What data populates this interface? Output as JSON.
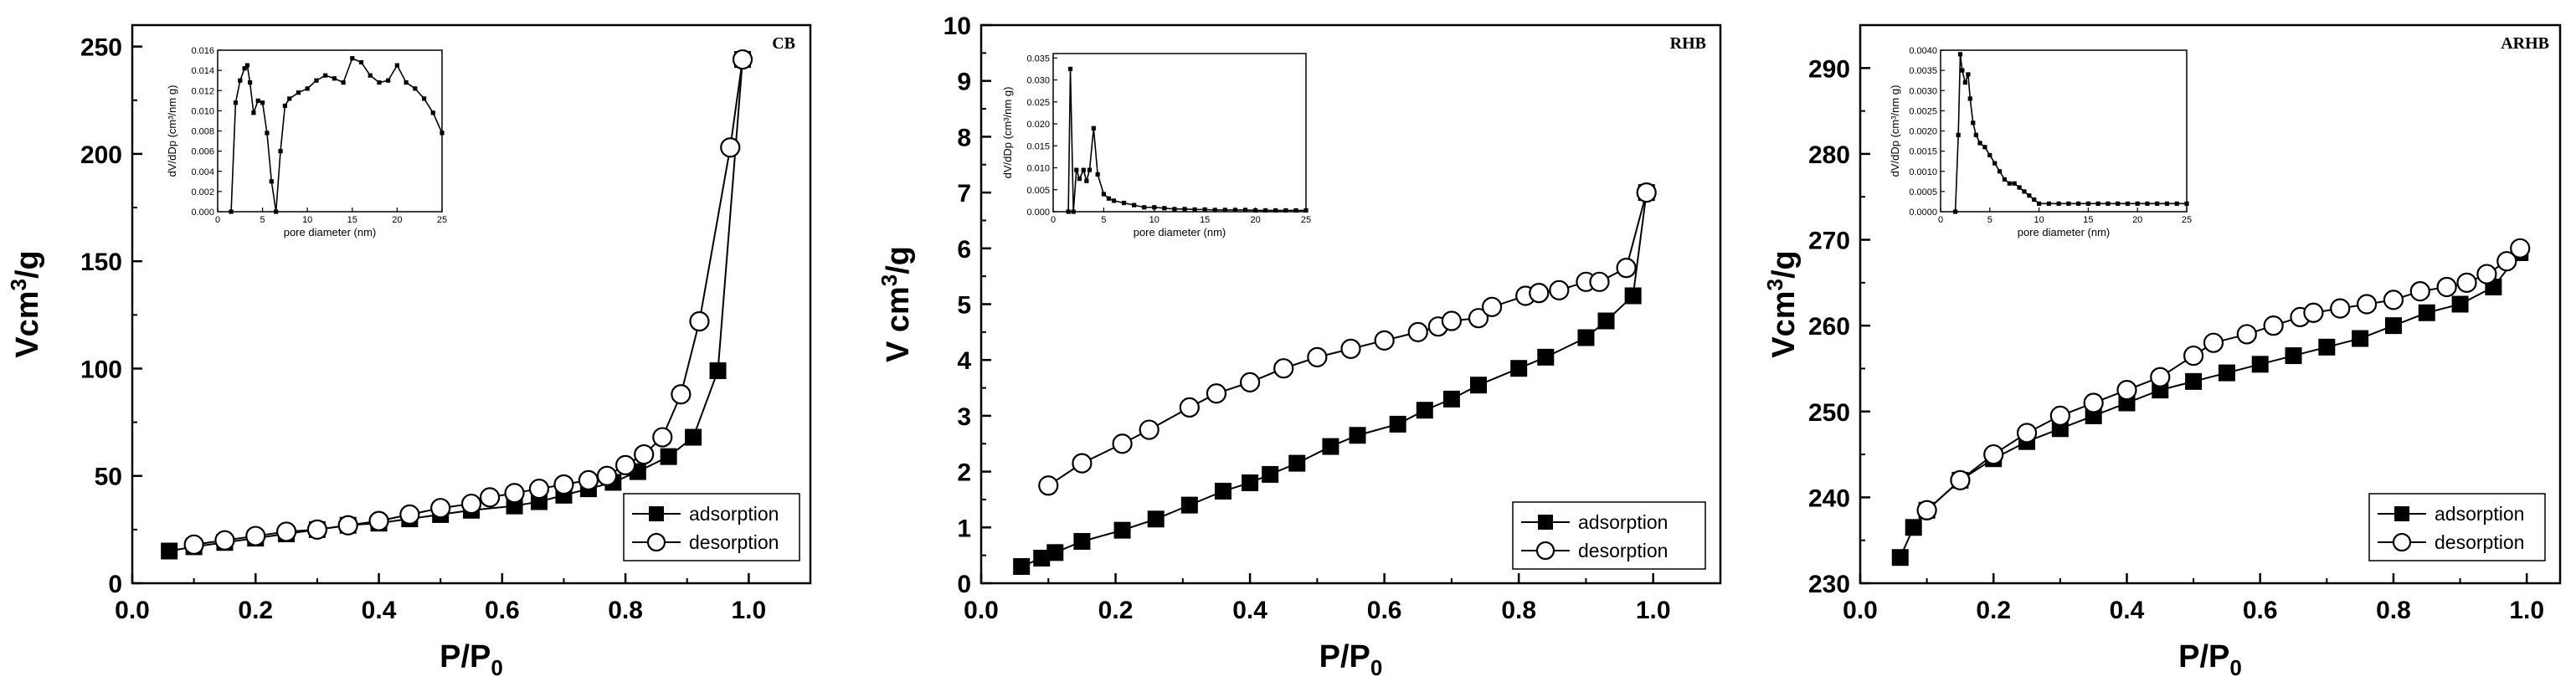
{
  "chart_data": [
    {
      "type": "line",
      "panel_label": "CB",
      "xlabel": "P/P",
      "xlabel_sub": "0",
      "ylabel": "Vcm",
      "ylabel_sup": "3",
      "ylabel_tail": "/g",
      "xlim": [
        0.0,
        1.1
      ],
      "ylim": [
        0,
        260
      ],
      "xticks": [
        0.0,
        0.2,
        0.4,
        0.6,
        0.8,
        1.0
      ],
      "yticks": [
        0,
        50,
        100,
        150,
        200,
        250
      ],
      "series": [
        {
          "name": "adsorption",
          "marker": "filled-square",
          "x": [
            0.06,
            0.1,
            0.15,
            0.2,
            0.25,
            0.3,
            0.35,
            0.4,
            0.45,
            0.5,
            0.55,
            0.62,
            0.66,
            0.7,
            0.74,
            0.78,
            0.82,
            0.87,
            0.91,
            0.95,
            0.99
          ],
          "y": [
            15,
            17,
            19,
            21,
            23,
            25,
            27,
            28,
            30,
            32,
            34,
            36,
            38,
            41,
            44,
            47,
            52,
            59,
            68,
            99,
            244
          ]
        },
        {
          "name": "desorption",
          "marker": "open-circle",
          "x": [
            0.1,
            0.15,
            0.2,
            0.25,
            0.3,
            0.35,
            0.4,
            0.45,
            0.5,
            0.55,
            0.58,
            0.62,
            0.66,
            0.7,
            0.74,
            0.77,
            0.8,
            0.83,
            0.86,
            0.89,
            0.92,
            0.97,
            0.99
          ],
          "y": [
            18,
            20,
            22,
            24,
            25,
            27,
            29,
            32,
            35,
            37,
            40,
            42,
            44,
            46,
            48,
            50,
            55,
            60,
            68,
            88,
            122,
            203,
            244
          ]
        }
      ],
      "legend": [
        "adsorption",
        "desorption"
      ],
      "inset": {
        "xlabel": "pore diameter (nm)",
        "ylabel": "dV/dDp (cm³/nm g)",
        "xlim": [
          0,
          25
        ],
        "ylim": [
          0,
          0.016
        ],
        "xticks": [
          0,
          5,
          10,
          15,
          20,
          25
        ],
        "yticks": [
          0.0,
          0.002,
          0.004,
          0.006,
          0.008,
          0.01,
          0.012,
          0.014,
          0.016
        ],
        "ytick_labels": [
          "0.000",
          "0.002",
          "0.004",
          "0.006",
          "0.008",
          "0.010",
          "0.012",
          "0.014",
          "0.016"
        ],
        "x": [
          1.5,
          2,
          2.5,
          3,
          3.3,
          3.6,
          4,
          4.5,
          5,
          5.5,
          6,
          6.5,
          7,
          7.5,
          8,
          9,
          10,
          11,
          12,
          13,
          14,
          15,
          16,
          17,
          18,
          19,
          20,
          21,
          22,
          23,
          24,
          25
        ],
        "y": [
          0.0,
          0.0108,
          0.013,
          0.0142,
          0.0145,
          0.0128,
          0.0098,
          0.011,
          0.0108,
          0.0078,
          0.003,
          0.0,
          0.006,
          0.0105,
          0.0112,
          0.0118,
          0.0122,
          0.013,
          0.0135,
          0.0132,
          0.0128,
          0.0152,
          0.0148,
          0.0135,
          0.0128,
          0.013,
          0.0145,
          0.0128,
          0.0122,
          0.0112,
          0.0098,
          0.0078
        ]
      }
    },
    {
      "type": "line",
      "panel_label": "RHB",
      "xlabel": "P/P",
      "xlabel_sub": "0",
      "ylabel": "V cm",
      "ylabel_sup": "3",
      "ylabel_tail": "/g",
      "xlim": [
        0.0,
        1.1
      ],
      "ylim": [
        0,
        10
      ],
      "xticks": [
        0.0,
        0.2,
        0.4,
        0.6,
        0.8,
        1.0
      ],
      "yticks": [
        0,
        1,
        2,
        3,
        4,
        5,
        6,
        7,
        8,
        9,
        10
      ],
      "series": [
        {
          "name": "adsorption",
          "marker": "filled-square",
          "x": [
            0.06,
            0.09,
            0.11,
            0.15,
            0.21,
            0.26,
            0.31,
            0.36,
            0.4,
            0.43,
            0.47,
            0.52,
            0.56,
            0.62,
            0.66,
            0.7,
            0.74,
            0.8,
            0.84,
            0.9,
            0.93,
            0.97,
            0.99
          ],
          "y": [
            0.3,
            0.45,
            0.55,
            0.75,
            0.95,
            1.15,
            1.4,
            1.65,
            1.8,
            1.95,
            2.15,
            2.45,
            2.65,
            2.85,
            3.1,
            3.3,
            3.55,
            3.85,
            4.05,
            4.4,
            4.7,
            5.15,
            7.0
          ]
        },
        {
          "name": "desorption",
          "marker": "open-circle",
          "x": [
            0.1,
            0.15,
            0.21,
            0.25,
            0.31,
            0.35,
            0.4,
            0.45,
            0.5,
            0.55,
            0.6,
            0.65,
            0.68,
            0.7,
            0.74,
            0.76,
            0.81,
            0.83,
            0.86,
            0.9,
            0.92,
            0.96,
            0.99
          ],
          "y": [
            1.75,
            2.15,
            2.5,
            2.75,
            3.15,
            3.4,
            3.6,
            3.85,
            4.05,
            4.2,
            4.35,
            4.5,
            4.6,
            4.7,
            4.75,
            4.95,
            5.15,
            5.2,
            5.25,
            5.4,
            5.4,
            5.65,
            7.0
          ]
        }
      ],
      "legend": [
        "adsorption",
        "desorption"
      ],
      "inset": {
        "xlabel": "pore diameter (nm)",
        "ylabel": "dV/dDp (cm³/nm g)",
        "xlim": [
          0,
          25
        ],
        "ylim": [
          0,
          0.036
        ],
        "xticks": [
          0,
          5,
          10,
          15,
          20,
          25
        ],
        "yticks": [
          0.0,
          0.005,
          0.01,
          0.015,
          0.02,
          0.025,
          0.03,
          0.035
        ],
        "ytick_labels": [
          "0.000",
          "0.005",
          "0.010",
          "0.015",
          "0.020",
          "0.025",
          "0.030",
          "0.035"
        ],
        "x": [
          1.5,
          1.7,
          2,
          2.3,
          2.6,
          3,
          3.3,
          3.6,
          4,
          4.4,
          5,
          5.5,
          6,
          7,
          8,
          9,
          10,
          11,
          12,
          13,
          14,
          15,
          16,
          17,
          18,
          19,
          20,
          21,
          22,
          23,
          24,
          25
        ],
        "y": [
          0.0,
          0.0325,
          0.0,
          0.0095,
          0.0075,
          0.0095,
          0.007,
          0.0095,
          0.019,
          0.0085,
          0.004,
          0.003,
          0.0025,
          0.002,
          0.0015,
          0.001,
          0.001,
          0.0008,
          0.0006,
          0.0006,
          0.0005,
          0.0005,
          0.0004,
          0.0004,
          0.0004,
          0.0004,
          0.0003,
          0.0003,
          0.0003,
          0.0003,
          0.0003,
          0.0003
        ]
      }
    },
    {
      "type": "line",
      "panel_label": "ARHB",
      "xlabel": "P/P",
      "xlabel_sub": "0",
      "ylabel": "Vcm",
      "ylabel_sup": "3",
      "ylabel_tail": "/g",
      "xlim": [
        0.0,
        1.05
      ],
      "ylim": [
        230,
        295
      ],
      "xticks": [
        0.0,
        0.2,
        0.4,
        0.6,
        0.8,
        1.0
      ],
      "yticks": [
        230,
        240,
        250,
        260,
        270,
        280,
        290
      ],
      "series": [
        {
          "name": "adsorption",
          "marker": "filled-square",
          "x": [
            0.06,
            0.08,
            0.1,
            0.15,
            0.2,
            0.25,
            0.3,
            0.35,
            0.4,
            0.45,
            0.5,
            0.55,
            0.6,
            0.65,
            0.7,
            0.75,
            0.8,
            0.85,
            0.9,
            0.95,
            0.99
          ],
          "y": [
            233,
            236.5,
            238.5,
            242,
            244.5,
            246.5,
            248,
            249.5,
            251,
            252.5,
            253.5,
            254.5,
            255.5,
            256.5,
            257.5,
            258.5,
            260,
            261.5,
            262.5,
            264.5,
            268.5
          ]
        },
        {
          "name": "desorption",
          "marker": "open-circle",
          "x": [
            0.1,
            0.15,
            0.2,
            0.25,
            0.3,
            0.35,
            0.4,
            0.45,
            0.5,
            0.53,
            0.58,
            0.62,
            0.66,
            0.68,
            0.72,
            0.76,
            0.8,
            0.84,
            0.88,
            0.91,
            0.94,
            0.97,
            0.99
          ],
          "y": [
            238.5,
            242,
            245,
            247.5,
            249.5,
            251,
            252.5,
            254,
            256.5,
            258,
            259,
            260,
            261,
            261.5,
            262,
            262.5,
            263,
            264,
            264.5,
            265,
            266,
            267.5,
            269
          ]
        }
      ],
      "legend": [
        "adsorption",
        "desorption"
      ],
      "inset": {
        "xlabel": "pore diameter (nm)",
        "ylabel": "dV/dDp (cm³/nm g)",
        "xlim": [
          0,
          25
        ],
        "ylim": [
          0,
          0.004
        ],
        "xticks": [
          0,
          5,
          10,
          15,
          20,
          25
        ],
        "yticks": [
          0.0,
          0.0005,
          0.001,
          0.0015,
          0.002,
          0.0025,
          0.003,
          0.0035,
          0.004
        ],
        "ytick_labels": [
          "0.0000",
          "0.0005",
          "0.0010",
          "0.0015",
          "0.0020",
          "0.0025",
          "0.0030",
          "0.0035",
          "0.0040"
        ],
        "x": [
          1.5,
          1.8,
          2,
          2.2,
          2.5,
          2.8,
          3,
          3.3,
          3.6,
          4,
          4.5,
          5,
          5.5,
          6,
          6.5,
          7,
          7.5,
          8,
          8.5,
          9,
          9.5,
          10,
          11,
          12,
          13,
          14,
          15,
          16,
          17,
          18,
          19,
          20,
          21,
          22,
          23,
          24,
          25
        ],
        "y": [
          0.0,
          0.0019,
          0.0039,
          0.0035,
          0.0032,
          0.0034,
          0.0028,
          0.0022,
          0.0019,
          0.0017,
          0.0016,
          0.0014,
          0.0012,
          0.001,
          0.0008,
          0.0007,
          0.0007,
          0.0006,
          0.0005,
          0.0004,
          0.0003,
          0.0002,
          0.0002,
          0.0002,
          0.0002,
          0.0002,
          0.0002,
          0.0002,
          0.0002,
          0.0002,
          0.0002,
          0.0002,
          0.0002,
          0.0002,
          0.0002,
          0.0002,
          0.0002
        ]
      }
    }
  ]
}
